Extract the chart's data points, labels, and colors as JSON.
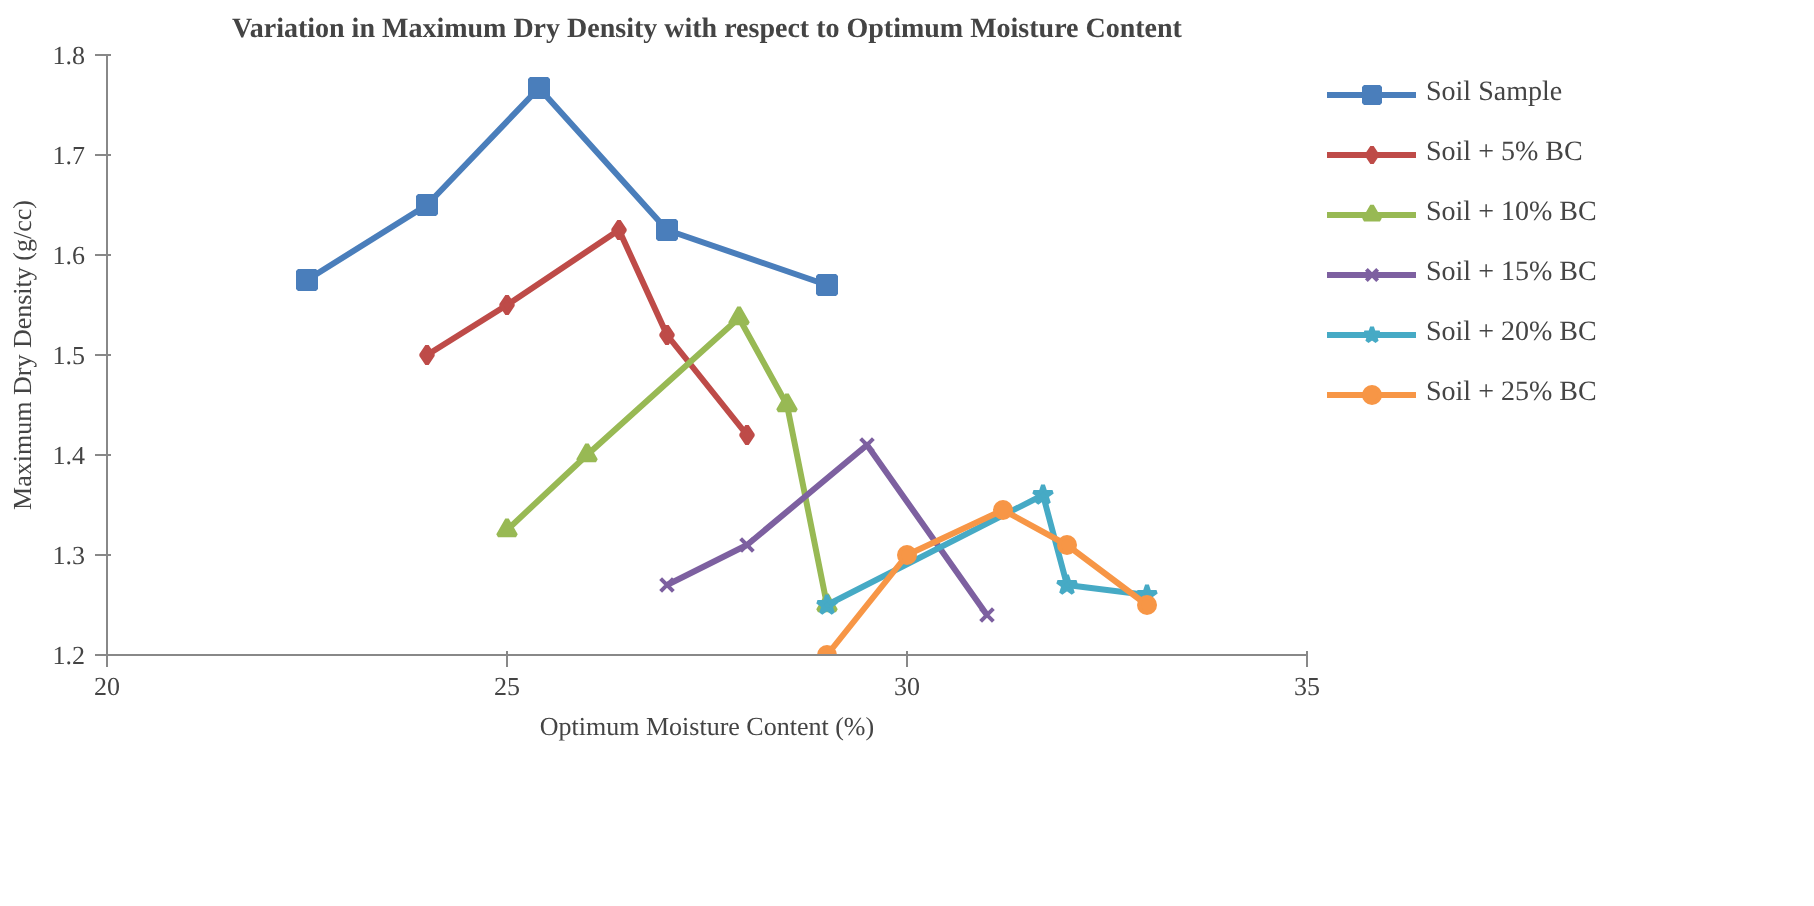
{
  "chart_data": {
    "type": "line",
    "title": "Variation in Maximum Dry Density with respect to Optimum Moisture Content",
    "xlabel": "Optimum Moisture Content (%)",
    "ylabel": "Maximum Dry Density (g/cc)",
    "xlim": [
      20,
      35
    ],
    "ylim": [
      1.2,
      1.8
    ],
    "xticks": [
      20,
      25,
      30,
      35
    ],
    "yticks": [
      1.2,
      1.3,
      1.4,
      1.5,
      1.6,
      1.7,
      1.8
    ],
    "grid": false,
    "legend": "right",
    "series": [
      {
        "name": "Soil Sample",
        "color": "#4a7ebb",
        "marker": "square",
        "x": [
          22.5,
          24,
          25.4,
          27,
          29
        ],
        "values": [
          1.575,
          1.65,
          1.767,
          1.625,
          1.57
        ]
      },
      {
        "name": "Soil + 5% BC",
        "color": "#be4b48",
        "marker": "diamond",
        "x": [
          24,
          25,
          26.4,
          27,
          28
        ],
        "values": [
          1.5,
          1.55,
          1.625,
          1.52,
          1.42
        ]
      },
      {
        "name": "Soil + 10% BC",
        "color": "#98b954",
        "marker": "triangle",
        "x": [
          25,
          26,
          27.9,
          28.5,
          29
        ],
        "values": [
          1.325,
          1.4,
          1.537,
          1.45,
          1.25
        ]
      },
      {
        "name": "Soil + 15% BC",
        "color": "#7d60a0",
        "marker": "cross",
        "x": [
          27,
          28,
          29.5,
          31
        ],
        "values": [
          1.27,
          1.31,
          1.41,
          1.24
        ]
      },
      {
        "name": "Soil + 20% BC",
        "color": "#46aac5",
        "marker": "star",
        "x": [
          29,
          31.7,
          32,
          33
        ],
        "values": [
          1.25,
          1.36,
          1.27,
          1.26
        ]
      },
      {
        "name": "Soil + 25% BC",
        "color": "#f79646",
        "marker": "circle",
        "x": [
          29,
          30,
          31.2,
          32,
          33
        ],
        "values": [
          1.2,
          1.3,
          1.345,
          1.31,
          1.25
        ]
      }
    ]
  }
}
